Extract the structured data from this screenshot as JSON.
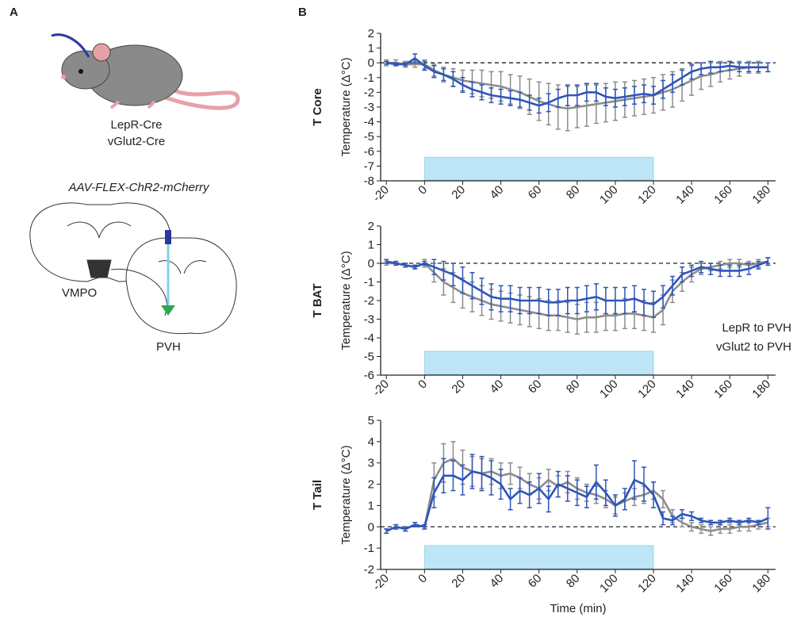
{
  "panel_labels": [
    "A",
    "B"
  ],
  "panel_a": {
    "mouse_labels": [
      "LepR-Cre",
      "vGlut2-Cre"
    ],
    "virus": "AAV-FLEX-ChR2-mCherry",
    "region_labels": [
      "VMPO",
      "PVH"
    ]
  },
  "chart_data": [
    {
      "type": "line",
      "title": "T Core",
      "y_label": "Temperature (Δ°C)",
      "x": [
        -20,
        -15,
        -10,
        -5,
        0,
        5,
        10,
        15,
        20,
        25,
        30,
        35,
        40,
        45,
        50,
        55,
        60,
        65,
        70,
        75,
        80,
        85,
        90,
        95,
        100,
        105,
        110,
        115,
        120,
        125,
        130,
        135,
        140,
        145,
        150,
        155,
        160,
        165,
        170,
        175,
        180
      ],
      "xlim": [
        -23,
        184
      ],
      "xticks": [
        -20,
        0,
        20,
        40,
        60,
        80,
        100,
        120,
        140,
        160,
        180
      ],
      "ylim": [
        -8,
        2
      ],
      "yticks": [
        2,
        1,
        0,
        -1,
        -2,
        -3,
        -4,
        -5,
        -6,
        -7,
        -8
      ],
      "stimulus": [
        0,
        120
      ],
      "series": [
        {
          "name": "LepR to PVH",
          "color": "#8c8c8c",
          "values": [
            0,
            0,
            -0.1,
            -0.1,
            -0.1,
            -0.5,
            -0.8,
            -1.0,
            -1.2,
            -1.3,
            -1.4,
            -1.5,
            -1.6,
            -1.8,
            -2.0,
            -2.3,
            -2.6,
            -2.8,
            -3.0,
            -3.1,
            -3.0,
            -2.9,
            -2.8,
            -2.7,
            -2.6,
            -2.5,
            -2.4,
            -2.3,
            -2.2,
            -2.0,
            -1.8,
            -1.5,
            -1.2,
            -0.9,
            -0.8,
            -0.6,
            -0.5,
            -0.4,
            -0.3,
            -0.3,
            -0.3
          ],
          "errors": [
            0.2,
            0.2,
            0.2,
            0.2,
            0.3,
            0.4,
            0.5,
            0.6,
            0.7,
            0.8,
            0.9,
            0.9,
            1.0,
            1.0,
            1.1,
            1.2,
            1.3,
            1.4,
            1.5,
            1.5,
            1.4,
            1.4,
            1.3,
            1.3,
            1.3,
            1.2,
            1.2,
            1.2,
            1.2,
            1.2,
            1.2,
            1.1,
            1.0,
            0.9,
            0.8,
            0.7,
            0.6,
            0.5,
            0.4,
            0.4,
            0.3
          ]
        },
        {
          "name": "vGlut2 to PVH",
          "color": "#2f55b8",
          "values": [
            0,
            -0.1,
            -0.1,
            0.3,
            -0.2,
            -0.6,
            -0.8,
            -1.1,
            -1.5,
            -1.8,
            -2.0,
            -2.2,
            -2.3,
            -2.4,
            -2.5,
            -2.7,
            -2.9,
            -2.7,
            -2.4,
            -2.2,
            -2.2,
            -2.0,
            -2.0,
            -2.3,
            -2.4,
            -2.3,
            -2.2,
            -2.1,
            -2.2,
            -1.8,
            -1.4,
            -1.0,
            -0.6,
            -0.4,
            -0.3,
            -0.3,
            -0.2,
            -0.3,
            -0.3,
            -0.3,
            -0.3
          ],
          "errors": [
            0.1,
            0.1,
            0.1,
            0.3,
            0.3,
            0.4,
            0.4,
            0.5,
            0.5,
            0.5,
            0.5,
            0.5,
            0.5,
            0.5,
            0.5,
            0.5,
            0.5,
            0.6,
            0.6,
            0.7,
            0.7,
            0.6,
            0.6,
            0.6,
            0.6,
            0.6,
            0.6,
            0.6,
            0.6,
            0.6,
            0.6,
            0.5,
            0.5,
            0.4,
            0.4,
            0.3,
            0.3,
            0.3,
            0.3,
            0.3,
            0.3
          ]
        }
      ]
    },
    {
      "type": "line",
      "title": "T BAT",
      "y_label": "Temperature (Δ°C)",
      "x": [
        -20,
        -15,
        -10,
        -5,
        0,
        5,
        10,
        15,
        20,
        25,
        30,
        35,
        40,
        45,
        50,
        55,
        60,
        65,
        70,
        75,
        80,
        85,
        90,
        95,
        100,
        105,
        110,
        115,
        120,
        125,
        130,
        135,
        140,
        145,
        150,
        155,
        160,
        165,
        170,
        175,
        180
      ],
      "xlim": [
        -23,
        184
      ],
      "xticks": [
        -20,
        0,
        20,
        40,
        60,
        80,
        100,
        120,
        140,
        160,
        180
      ],
      "ylim": [
        -6,
        2
      ],
      "yticks": [
        2,
        1,
        0,
        -1,
        -2,
        -3,
        -4,
        -5,
        -6
      ],
      "stimulus": [
        0,
        120
      ],
      "legend": "lower right",
      "series": [
        {
          "name": "LepR to PVH",
          "color": "#8c8c8c",
          "values": [
            0,
            0,
            -0.1,
            -0.2,
            0,
            -0.5,
            -1.0,
            -1.3,
            -1.6,
            -1.8,
            -2.0,
            -2.2,
            -2.3,
            -2.4,
            -2.5,
            -2.6,
            -2.7,
            -2.8,
            -2.8,
            -2.9,
            -3.0,
            -2.9,
            -2.9,
            -2.8,
            -2.8,
            -2.7,
            -2.7,
            -2.8,
            -2.9,
            -2.5,
            -1.5,
            -1.0,
            -0.6,
            -0.3,
            -0.2,
            -0.1,
            0,
            0,
            -0.1,
            0,
            0.1
          ],
          "errors": [
            0.1,
            0.1,
            0.1,
            0.1,
            0.2,
            0.5,
            0.7,
            0.8,
            0.8,
            0.8,
            0.8,
            0.8,
            0.8,
            0.8,
            0.8,
            0.8,
            0.8,
            0.8,
            0.8,
            0.8,
            0.8,
            0.8,
            0.8,
            0.8,
            0.8,
            0.8,
            0.8,
            0.8,
            0.8,
            0.8,
            0.6,
            0.5,
            0.4,
            0.3,
            0.2,
            0.2,
            0.2,
            0.2,
            0.2,
            0.2,
            0.2
          ]
        },
        {
          "name": "vGlut2 to PVH",
          "color": "#2f55b8",
          "values": [
            0.1,
            0,
            -0.1,
            -0.2,
            0,
            -0.2,
            -0.4,
            -0.6,
            -0.9,
            -1.2,
            -1.5,
            -1.8,
            -1.9,
            -1.9,
            -2.0,
            -2.0,
            -2.0,
            -2.1,
            -2.1,
            -2.0,
            -2.0,
            -1.9,
            -1.8,
            -2.0,
            -2.0,
            -2.0,
            -1.9,
            -2.1,
            -2.2,
            -1.8,
            -1.2,
            -0.6,
            -0.4,
            -0.2,
            -0.3,
            -0.4,
            -0.4,
            -0.4,
            -0.3,
            -0.1,
            0.1
          ],
          "errors": [
            0.1,
            0.1,
            0.1,
            0.1,
            0.1,
            0.4,
            0.5,
            0.6,
            0.7,
            0.7,
            0.7,
            0.7,
            0.7,
            0.7,
            0.7,
            0.7,
            0.7,
            0.7,
            0.7,
            0.7,
            0.7,
            0.7,
            0.7,
            0.7,
            0.7,
            0.7,
            0.7,
            0.7,
            0.7,
            0.6,
            0.5,
            0.4,
            0.3,
            0.3,
            0.3,
            0.3,
            0.3,
            0.3,
            0.3,
            0.2,
            0.2
          ]
        }
      ]
    },
    {
      "type": "line",
      "title": "T Tail",
      "y_label": "Temperature (Δ°C)",
      "x_label": "Time (min)",
      "x": [
        -20,
        -15,
        -10,
        -5,
        0,
        5,
        10,
        15,
        20,
        25,
        30,
        35,
        40,
        45,
        50,
        55,
        60,
        65,
        70,
        75,
        80,
        85,
        90,
        95,
        100,
        105,
        110,
        115,
        120,
        125,
        130,
        135,
        140,
        145,
        150,
        155,
        160,
        165,
        170,
        175,
        180
      ],
      "xlim": [
        -23,
        184
      ],
      "xticks": [
        -20,
        0,
        20,
        40,
        60,
        80,
        100,
        120,
        140,
        160,
        180
      ],
      "ylim": [
        -2,
        5
      ],
      "yticks": [
        5,
        4,
        3,
        2,
        1,
        0,
        -1,
        -2
      ],
      "stimulus": [
        0,
        120
      ],
      "series": [
        {
          "name": "LepR to PVH",
          "color": "#8c8c8c",
          "values": [
            -0.2,
            0,
            -0.1,
            0.1,
            0,
            2.2,
            3.0,
            3.2,
            2.8,
            2.6,
            2.5,
            2.6,
            2.4,
            2.5,
            2.3,
            2.0,
            1.8,
            2.2,
            1.9,
            2.1,
            1.8,
            1.6,
            1.5,
            1.3,
            1.0,
            1.2,
            1.4,
            1.5,
            1.7,
            1.3,
            0.5,
            0.2,
            0,
            -0.1,
            -0.2,
            -0.1,
            -0.1,
            0,
            0,
            0.1,
            0.2
          ],
          "errors": [
            0.1,
            0.1,
            0.1,
            0.1,
            0.1,
            0.8,
            0.9,
            0.8,
            0.8,
            0.7,
            0.7,
            0.6,
            0.6,
            0.5,
            0.5,
            0.5,
            0.5,
            0.5,
            0.5,
            0.5,
            0.5,
            0.4,
            0.4,
            0.4,
            0.4,
            0.4,
            0.4,
            0.4,
            0.4,
            0.4,
            0.3,
            0.2,
            0.2,
            0.2,
            0.2,
            0.2,
            0.2,
            0.2,
            0.2,
            0.2,
            0.2
          ]
        },
        {
          "name": "vGlut2 to PVH",
          "color": "#2f55b8",
          "values": [
            -0.2,
            0,
            -0.1,
            0.1,
            0,
            1.6,
            2.4,
            2.4,
            2.2,
            2.6,
            2.5,
            2.3,
            2.0,
            1.3,
            1.7,
            1.5,
            1.8,
            1.3,
            2.0,
            1.8,
            1.6,
            1.4,
            2.1,
            1.6,
            1.0,
            1.3,
            2.2,
            2.0,
            1.5,
            0.4,
            0.3,
            0.6,
            0.5,
            0.3,
            0.2,
            0.2,
            0.3,
            0.2,
            0.3,
            0.2,
            0.4
          ],
          "errors": [
            0.1,
            0.1,
            0.1,
            0.1,
            0.1,
            0.7,
            0.8,
            0.7,
            0.7,
            0.8,
            0.8,
            0.8,
            0.7,
            0.5,
            0.6,
            0.6,
            0.7,
            0.6,
            0.6,
            0.6,
            0.6,
            0.5,
            0.8,
            0.6,
            0.5,
            0.5,
            0.9,
            0.8,
            0.6,
            0.3,
            0.2,
            0.2,
            0.2,
            0.1,
            0.1,
            0.1,
            0.1,
            0.1,
            0.1,
            0.1,
            0.5
          ]
        }
      ]
    }
  ]
}
